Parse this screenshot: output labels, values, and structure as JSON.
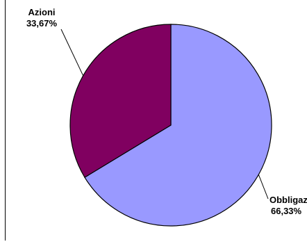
{
  "chart_data": {
    "type": "pie",
    "title": "",
    "slices": [
      {
        "label": "Obbligaz.",
        "value": 66.33,
        "value_label": "66,33%",
        "color": "#9999ff"
      },
      {
        "label": "Azioni",
        "value": 33.67,
        "value_label": "33,67%",
        "color": "#800060"
      }
    ],
    "start_angle_deg": 0,
    "direction": "clockwise",
    "outline_color": "#000000",
    "legend": "none"
  }
}
